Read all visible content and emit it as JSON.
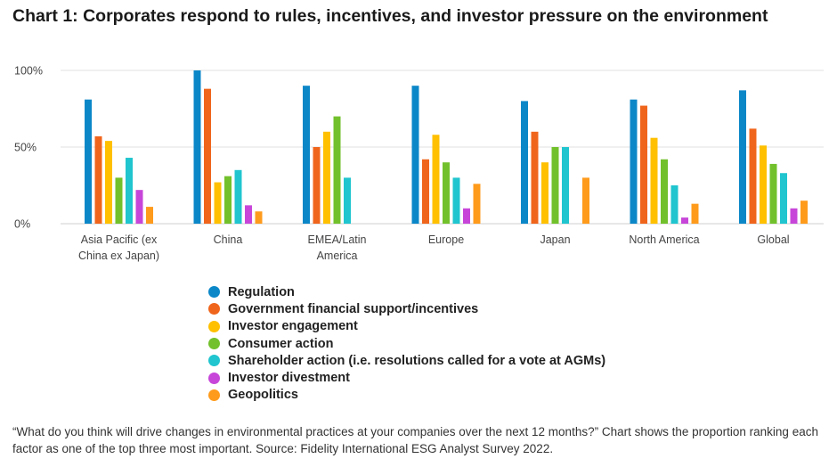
{
  "title": "Chart 1: Corporates respond to rules, incentives, and investor pressure on the environment",
  "note": "“What do you think will drive changes in environmental practices at your companies over the next 12 months?” Chart shows the proportion ranking each factor as one of the top three most important. Source: Fidelity International ESG Analyst Survey 2022.",
  "chart_data": {
    "type": "bar",
    "title": "Chart 1: Corporates respond to rules, incentives, and investor pressure on the environment",
    "xlabel": "",
    "ylabel": "",
    "ylim": [
      0,
      100
    ],
    "yticks": [
      "0%",
      "50%",
      "100%"
    ],
    "grid": true,
    "legend_position": "bottom",
    "categories": [
      [
        "Asia Pacific (ex",
        "China ex Japan)"
      ],
      [
        "China"
      ],
      [
        "EMEA/Latin",
        "America"
      ],
      [
        "Europe"
      ],
      [
        "Japan"
      ],
      [
        "North America"
      ],
      [
        "Global"
      ]
    ],
    "series": [
      {
        "name": "Regulation",
        "color": "#0b87c8",
        "values": [
          81,
          100,
          90,
          90,
          80,
          81,
          87
        ]
      },
      {
        "name": "Government financial support/incentives",
        "color": "#f0651c",
        "values": [
          57,
          88,
          50,
          42,
          60,
          77,
          62
        ]
      },
      {
        "name": "Investor engagement",
        "color": "#ffc000",
        "values": [
          54,
          27,
          60,
          58,
          40,
          56,
          51
        ]
      },
      {
        "name": "Consumer action",
        "color": "#72c12c",
        "values": [
          30,
          31,
          70,
          40,
          50,
          42,
          39
        ]
      },
      {
        "name": "Shareholder action (i.e. resolutions called for a vote at AGMs)",
        "color": "#20c5cf",
        "values": [
          43,
          35,
          30,
          30,
          50,
          25,
          33
        ]
      },
      {
        "name": "Investor divestment",
        "color": "#c746d9",
        "values": [
          22,
          12,
          0,
          10,
          0,
          4,
          10
        ]
      },
      {
        "name": "Geopolitics",
        "color": "#ff9b1c",
        "values": [
          11,
          8,
          0,
          26,
          30,
          13,
          15
        ]
      }
    ]
  }
}
